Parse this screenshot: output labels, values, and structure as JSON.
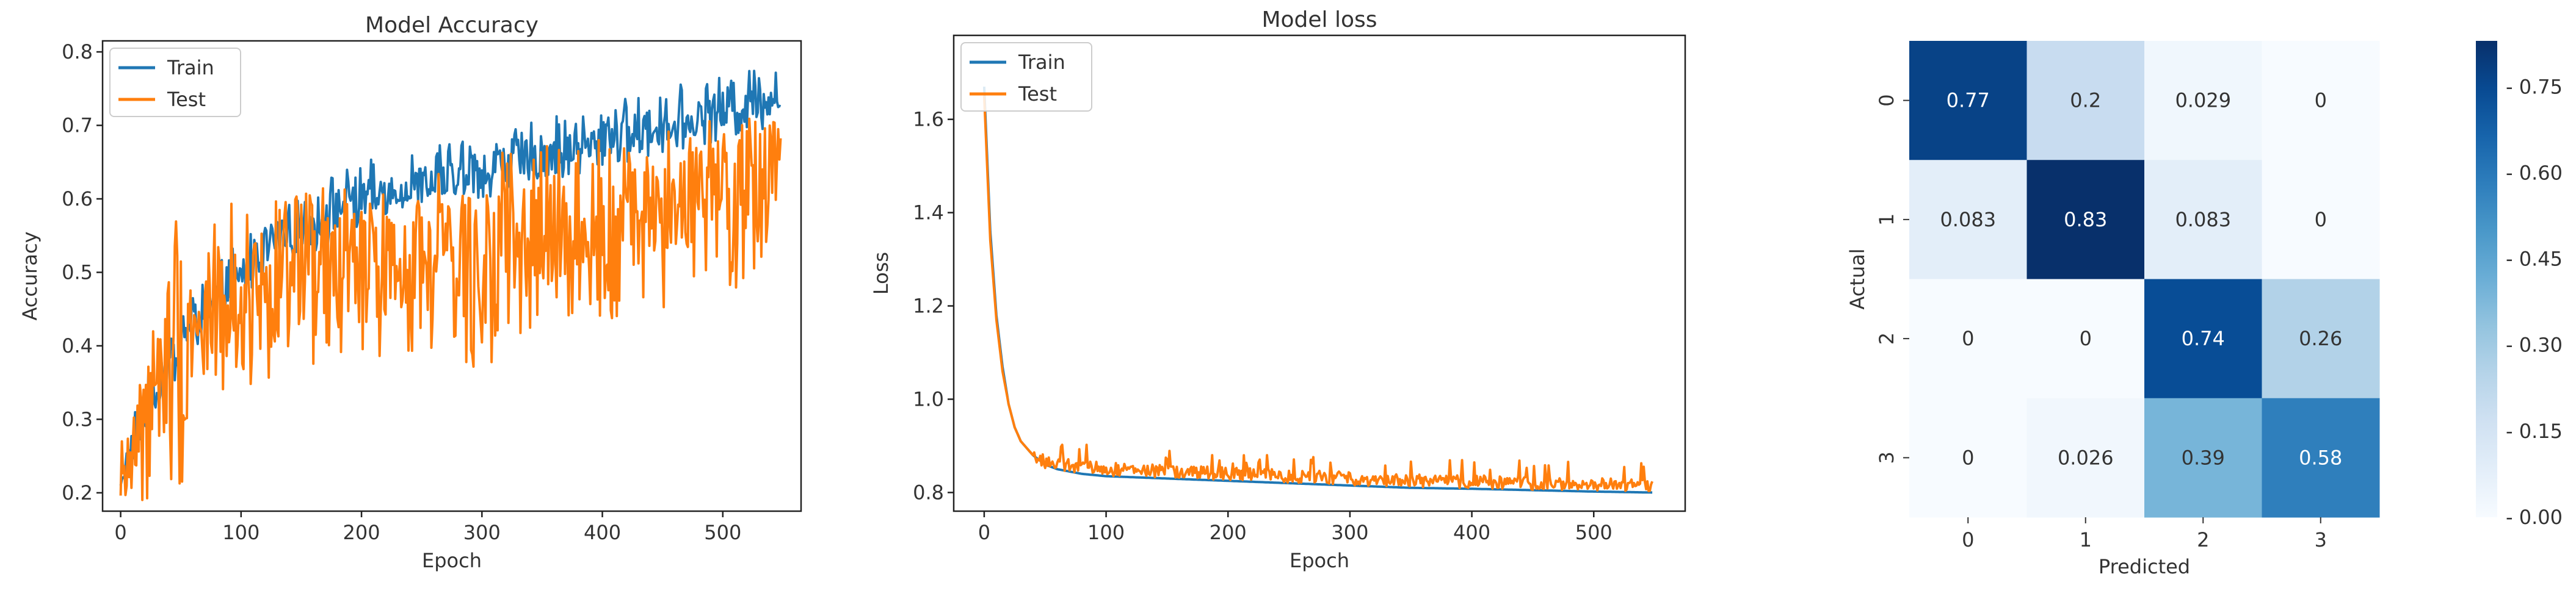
{
  "chart_data": [
    {
      "type": "line",
      "title": "Model Accuracy",
      "xlabel": "Epoch",
      "ylabel": "Accuracy",
      "xlim": [
        -15,
        565
      ],
      "ylim": [
        0.175,
        0.815
      ],
      "x_ticks": [
        0,
        100,
        200,
        300,
        400,
        500
      ],
      "x_tick_labels": [
        "0",
        "100",
        "200",
        "300",
        "400",
        "500"
      ],
      "y_ticks": [
        0.2,
        0.3,
        0.4,
        0.5,
        0.6,
        0.7,
        0.8
      ],
      "y_tick_labels": [
        "0.2",
        "0.3",
        "0.4",
        "0.5",
        "0.6",
        "0.7",
        "0.8"
      ],
      "legend": {
        "position": "top-left",
        "entries": [
          "Train",
          "Test"
        ]
      },
      "series": [
        {
          "name": "Train",
          "color": "#1f77b4",
          "x": [
            0,
            25,
            50,
            75,
            100,
            125,
            150,
            175,
            200,
            225,
            250,
            275,
            300,
            325,
            350,
            375,
            400,
            425,
            450,
            475,
            500,
            525,
            548
          ],
          "values": [
            0.22,
            0.33,
            0.41,
            0.46,
            0.5,
            0.54,
            0.56,
            0.58,
            0.6,
            0.61,
            0.62,
            0.63,
            0.64,
            0.65,
            0.66,
            0.67,
            0.68,
            0.69,
            0.7,
            0.71,
            0.72,
            0.73,
            0.74
          ],
          "low": [
            0.21,
            0.29,
            0.36,
            0.42,
            0.46,
            0.5,
            0.52,
            0.54,
            0.56,
            0.58,
            0.59,
            0.6,
            0.6,
            0.61,
            0.62,
            0.63,
            0.64,
            0.65,
            0.66,
            0.67,
            0.68,
            0.69,
            0.7
          ],
          "high": [
            0.28,
            0.37,
            0.46,
            0.5,
            0.55,
            0.58,
            0.6,
            0.63,
            0.65,
            0.66,
            0.67,
            0.68,
            0.69,
            0.7,
            0.71,
            0.72,
            0.73,
            0.74,
            0.75,
            0.76,
            0.77,
            0.78,
            0.78
          ]
        },
        {
          "name": "Test",
          "color": "#ff7f0e",
          "x": [
            0,
            25,
            50,
            75,
            100,
            125,
            150,
            175,
            200,
            225,
            250,
            275,
            300,
            325,
            350,
            375,
            400,
            425,
            450,
            475,
            500,
            525,
            548
          ],
          "values": [
            0.22,
            0.32,
            0.4,
            0.44,
            0.46,
            0.48,
            0.49,
            0.5,
            0.51,
            0.51,
            0.52,
            0.53,
            0.53,
            0.54,
            0.55,
            0.56,
            0.57,
            0.58,
            0.59,
            0.6,
            0.61,
            0.62,
            0.66
          ],
          "low": [
            0.19,
            0.19,
            0.19,
            0.33,
            0.35,
            0.33,
            0.36,
            0.37,
            0.38,
            0.38,
            0.39,
            0.4,
            0.35,
            0.4,
            0.42,
            0.43,
            0.44,
            0.43,
            0.45,
            0.46,
            0.47,
            0.48,
            0.55
          ],
          "high": [
            0.28,
            0.42,
            0.61,
            0.59,
            0.6,
            0.6,
            0.61,
            0.62,
            0.62,
            0.63,
            0.64,
            0.65,
            0.66,
            0.67,
            0.67,
            0.68,
            0.68,
            0.69,
            0.7,
            0.71,
            0.72,
            0.72,
            0.74
          ]
        }
      ]
    },
    {
      "type": "line",
      "title": "Model loss",
      "xlabel": "Epoch",
      "ylabel": "Loss",
      "xlim": [
        -25,
        575
      ],
      "ylim": [
        0.76,
        1.78
      ],
      "x_ticks": [
        0,
        100,
        200,
        300,
        400,
        500
      ],
      "x_tick_labels": [
        "0",
        "100",
        "200",
        "300",
        "400",
        "500"
      ],
      "y_ticks": [
        0.8,
        1.0,
        1.2,
        1.4,
        1.6
      ],
      "y_tick_labels": [
        "0.8",
        "1.0",
        "1.2",
        "1.4",
        "1.6"
      ],
      "legend": {
        "position": "top-left",
        "entries": [
          "Train",
          "Test"
        ]
      },
      "series": [
        {
          "name": "Train",
          "color": "#1f77b4",
          "x": [
            0,
            5,
            10,
            15,
            20,
            25,
            30,
            40,
            50,
            60,
            80,
            100,
            150,
            200,
            250,
            300,
            350,
            400,
            450,
            500,
            548
          ],
          "values": [
            1.67,
            1.36,
            1.18,
            1.07,
            0.99,
            0.94,
            0.91,
            0.88,
            0.86,
            0.85,
            0.84,
            0.835,
            0.83,
            0.825,
            0.82,
            0.815,
            0.81,
            0.808,
            0.805,
            0.802,
            0.8
          ]
        },
        {
          "name": "Test",
          "color": "#ff7f0e",
          "x": [
            0,
            5,
            10,
            15,
            20,
            25,
            30,
            40,
            50,
            60,
            80,
            100,
            150,
            200,
            250,
            300,
            350,
            400,
            450,
            500,
            548
          ],
          "values": [
            1.65,
            1.34,
            1.17,
            1.06,
            0.99,
            0.94,
            0.91,
            0.88,
            0.865,
            0.86,
            0.855,
            0.85,
            0.845,
            0.84,
            0.835,
            0.83,
            0.825,
            0.823,
            0.82,
            0.818,
            0.815
          ],
          "noise": 0.014
        }
      ]
    },
    {
      "type": "heatmap",
      "title": "",
      "xlabel": "Predicted",
      "ylabel": "Actual",
      "x_labels": [
        "0",
        "1",
        "2",
        "3"
      ],
      "y_labels": [
        "0",
        "1",
        "2",
        "3"
      ],
      "values": [
        [
          0.77,
          0.2,
          0.029,
          0
        ],
        [
          0.083,
          0.83,
          0.083,
          0
        ],
        [
          0,
          0,
          0.74,
          0.26
        ],
        [
          0,
          0.026,
          0.39,
          0.58
        ]
      ],
      "cell_labels": [
        [
          "0.77",
          "0.2",
          "0.029",
          "0"
        ],
        [
          "0.083",
          "0.83",
          "0.083",
          "0"
        ],
        [
          "0",
          "0",
          "0.74",
          "0.26"
        ],
        [
          "0",
          "0.026",
          "0.39",
          "0.58"
        ]
      ],
      "colormap": "Blues",
      "colorbar_range": [
        0,
        0.83
      ],
      "colorbar_ticks": [
        0,
        0.15,
        0.3,
        0.45,
        0.6,
        0.75
      ],
      "colorbar_tick_labels": [
        "- 0.00",
        "- 0.15",
        "- 0.30",
        "- 0.45",
        "- 0.60",
        "- 0.75"
      ]
    }
  ]
}
